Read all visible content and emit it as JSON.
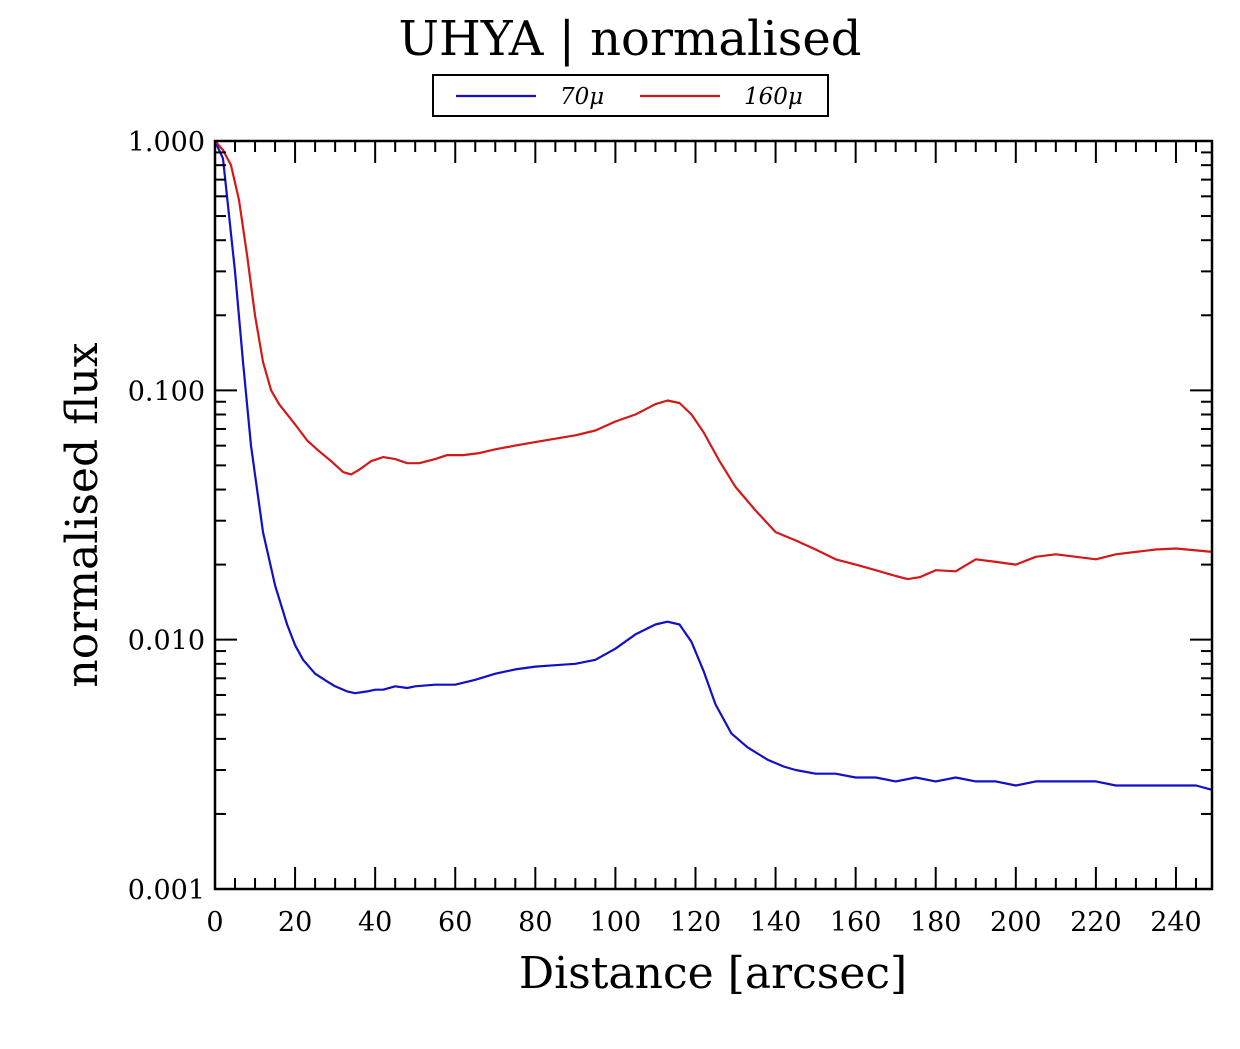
{
  "chart_data": {
    "type": "line",
    "title": "UHYA | normalised",
    "xlabel": "Distance [arcsec]",
    "ylabel": "normalised flux",
    "yscale": "log",
    "xlim": [
      0,
      249
    ],
    "ylim": [
      0.001,
      1.0
    ],
    "x_ticks": [
      0,
      20,
      40,
      60,
      80,
      100,
      120,
      140,
      160,
      180,
      200,
      220,
      240
    ],
    "x_tick_labels": [
      "0",
      "20",
      "40",
      "60",
      "80",
      "100",
      "120",
      "140",
      "160",
      "180",
      "200",
      "220",
      "240"
    ],
    "y_ticks": [
      0.001,
      0.01,
      0.1,
      1.0
    ],
    "y_tick_labels": [
      "0.001",
      "0.010",
      "0.100",
      "1.000"
    ],
    "grid": false,
    "legend_position": "top-center",
    "series": [
      {
        "name": "70μ",
        "legend_label": "70μ",
        "color": "#1010c8",
        "x": [
          0,
          2,
          3,
          5,
          7,
          9,
          12,
          15,
          18,
          20,
          22,
          25,
          28,
          30,
          33,
          35,
          38,
          40,
          42,
          45,
          48,
          50,
          55,
          60,
          65,
          70,
          75,
          80,
          85,
          90,
          95,
          100,
          105,
          110,
          113,
          116,
          119,
          122,
          125,
          129,
          133,
          138,
          142,
          145,
          150,
          155,
          160,
          165,
          170,
          175,
          180,
          185,
          190,
          195,
          200,
          205,
          210,
          215,
          220,
          225,
          230,
          235,
          240,
          245,
          249
        ],
        "y": [
          1.0,
          0.85,
          0.6,
          0.3,
          0.13,
          0.06,
          0.027,
          0.0165,
          0.0115,
          0.0095,
          0.0083,
          0.0073,
          0.0068,
          0.0065,
          0.0062,
          0.0061,
          0.0062,
          0.0063,
          0.0063,
          0.0065,
          0.0064,
          0.0065,
          0.0066,
          0.0066,
          0.0069,
          0.0073,
          0.0076,
          0.0078,
          0.0079,
          0.008,
          0.0083,
          0.0092,
          0.0105,
          0.0115,
          0.0118,
          0.0115,
          0.0098,
          0.0075,
          0.0055,
          0.0042,
          0.0037,
          0.0033,
          0.0031,
          0.003,
          0.0029,
          0.0029,
          0.0028,
          0.0028,
          0.0027,
          0.0028,
          0.0027,
          0.0028,
          0.0027,
          0.0027,
          0.0026,
          0.0027,
          0.0027,
          0.0027,
          0.0027,
          0.0026,
          0.0026,
          0.0026,
          0.0026,
          0.0026,
          0.0025
        ]
      },
      {
        "name": "160μ",
        "legend_label": "160μ",
        "color": "#d41818",
        "x": [
          0,
          2,
          4,
          6,
          8,
          10,
          12,
          14,
          16,
          20,
          23,
          26,
          29,
          32,
          34,
          36,
          39,
          42,
          45,
          48,
          51,
          55,
          58,
          62,
          66,
          70,
          75,
          80,
          85,
          90,
          95,
          100,
          105,
          110,
          113,
          116,
          119,
          122,
          126,
          130,
          135,
          140,
          145,
          150,
          155,
          160,
          165,
          170,
          173,
          176,
          180,
          185,
          190,
          195,
          200,
          205,
          210,
          215,
          220,
          225,
          230,
          235,
          240,
          245,
          249
        ],
        "y": [
          1.0,
          0.92,
          0.8,
          0.58,
          0.35,
          0.2,
          0.13,
          0.1,
          0.088,
          0.073,
          0.063,
          0.057,
          0.052,
          0.047,
          0.046,
          0.048,
          0.052,
          0.054,
          0.053,
          0.051,
          0.051,
          0.053,
          0.055,
          0.055,
          0.056,
          0.058,
          0.06,
          0.062,
          0.064,
          0.066,
          0.069,
          0.075,
          0.08,
          0.088,
          0.091,
          0.089,
          0.08,
          0.068,
          0.052,
          0.041,
          0.033,
          0.027,
          0.025,
          0.023,
          0.021,
          0.02,
          0.019,
          0.018,
          0.0175,
          0.0178,
          0.019,
          0.0188,
          0.021,
          0.0205,
          0.02,
          0.0215,
          0.022,
          0.0215,
          0.021,
          0.022,
          0.0225,
          0.023,
          0.0232,
          0.0228,
          0.0225
        ]
      }
    ]
  }
}
